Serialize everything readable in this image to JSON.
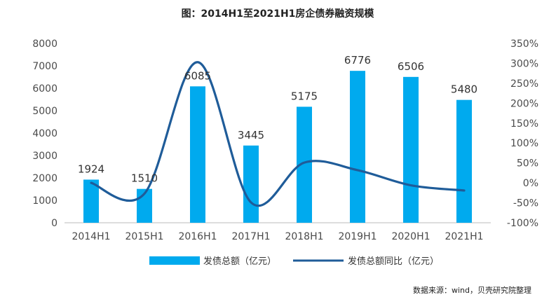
{
  "title": "图：2014H1至2021H1房企债券融资规模",
  "source": "数据来源：wind，贝壳研究院整理",
  "colors": {
    "bar": "#00aaee",
    "line": "#1f5c99",
    "axis": "#bbbbbb"
  },
  "chart_data": {
    "type": "bar",
    "categories": [
      "2014H1",
      "2015H1",
      "2016H1",
      "2017H1",
      "2018H1",
      "2019H1",
      "2020H1",
      "2021H1"
    ],
    "series": [
      {
        "name": "发债总额（亿元）",
        "type": "bar",
        "axis": "left",
        "values": [
          1924,
          1510,
          6085,
          3445,
          5175,
          6776,
          6506,
          5480
        ]
      },
      {
        "name": "发债总额同比（亿元）",
        "type": "line",
        "axis": "right",
        "values": [
          0,
          -27,
          303,
          -49,
          51,
          32,
          -6,
          -19
        ]
      }
    ],
    "data_labels": [
      "1924",
      "1510",
      "6085",
      "3445",
      "5175",
      "6776",
      "6506",
      "5480"
    ],
    "y_left": {
      "min": 0,
      "max": 8000,
      "ticks": [
        "0",
        "1000",
        "2000",
        "3000",
        "4000",
        "5000",
        "6000",
        "7000",
        "8000"
      ]
    },
    "y_right": {
      "min": -100,
      "max": 350,
      "ticks": [
        "-100%",
        "-50%",
        "0%",
        "50%",
        "100%",
        "150%",
        "200%",
        "250%",
        "300%",
        "350%"
      ]
    },
    "legend_position": "bottom",
    "grid": false
  }
}
